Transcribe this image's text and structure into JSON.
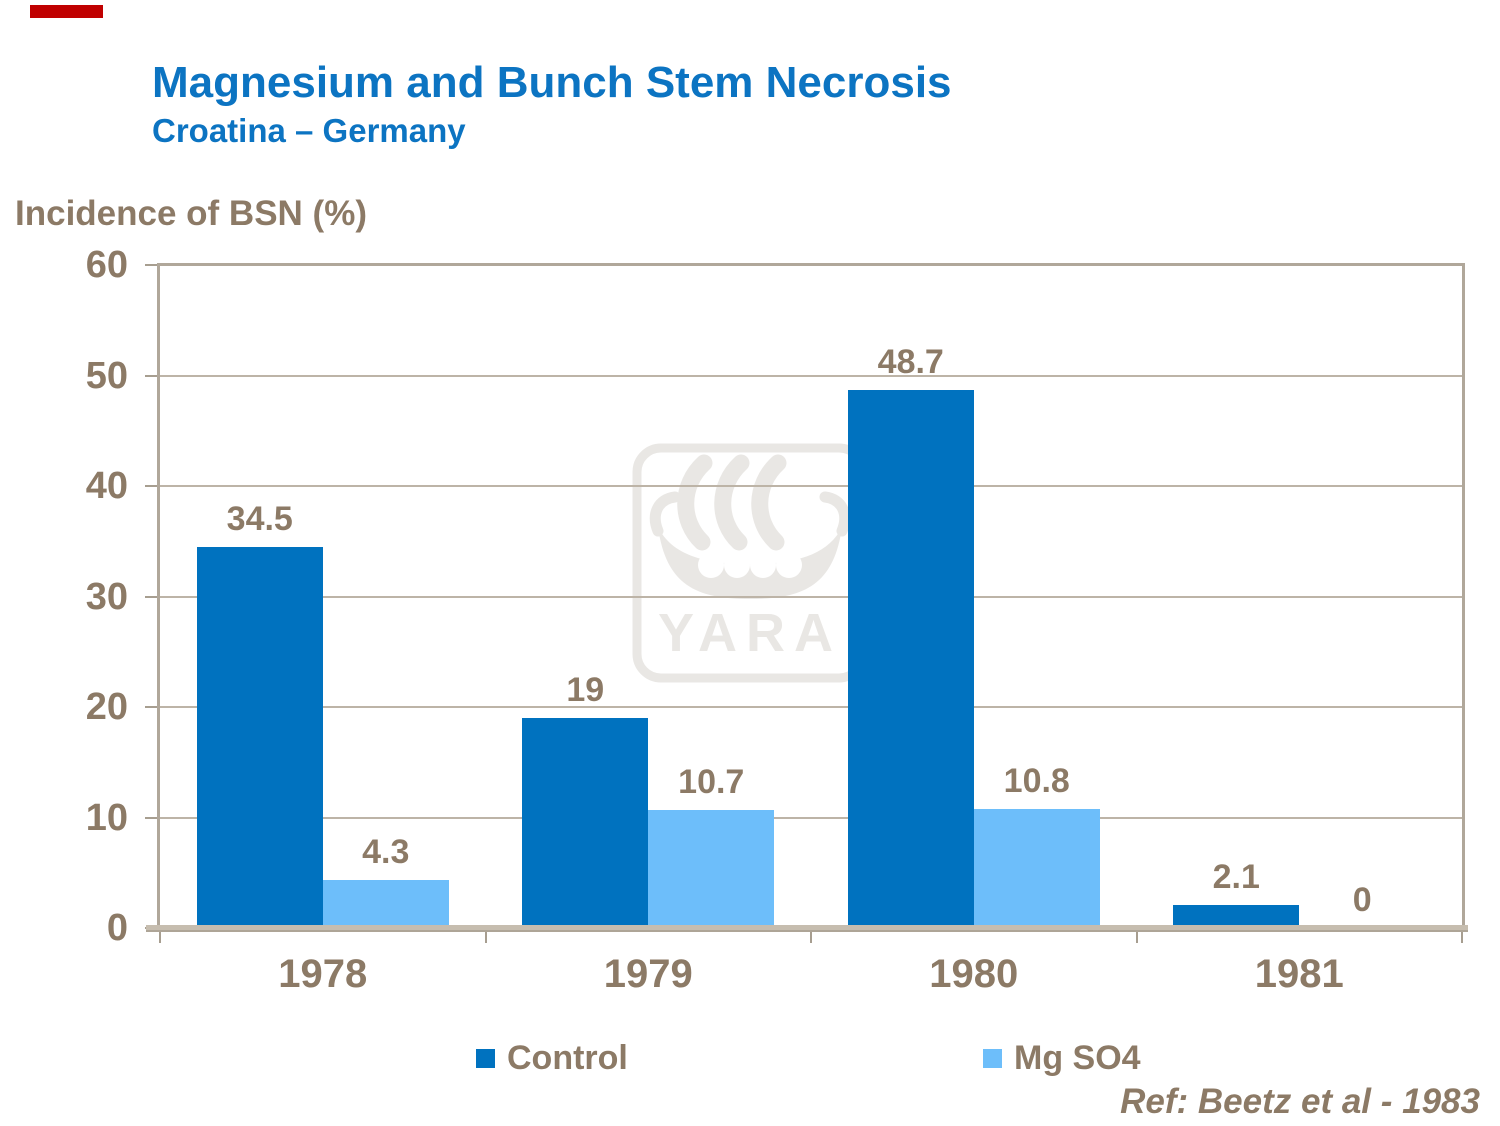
{
  "slide": {
    "title": "Magnesium and Bunch Stem Necrosis",
    "subtitle": "Croatina – Germany",
    "reference": "Ref: Beetz et al - 1983"
  },
  "watermark": {
    "brand_text": "YARA"
  },
  "colors": {
    "title_blue": "#0C74C2",
    "control": "#0072BF",
    "mgso4": "#6DBEFA",
    "text_brown": "#8C7A66",
    "gridline": "#BDB4A7",
    "frame": "#B0A79A",
    "accent_red": "#C00000",
    "watermark_gray": "#E9E7E4"
  },
  "chart_data": {
    "type": "bar",
    "title": "Incidence of BSN (%)",
    "ylabel": "Incidence of BSN (%)",
    "xlabel": "",
    "categories": [
      "1978",
      "1979",
      "1980",
      "1981"
    ],
    "series": [
      {
        "name": "Control",
        "color_key": "control",
        "values": [
          34.5,
          19,
          48.7,
          2.1
        ],
        "labels": [
          "34.5",
          "19",
          "48.7",
          "2.1"
        ]
      },
      {
        "name": "Mg SO4",
        "color_key": "mgso4",
        "values": [
          4.3,
          10.7,
          10.8,
          0
        ],
        "labels": [
          "4.3",
          "10.7",
          "10.8",
          "0"
        ]
      }
    ],
    "ylim": [
      0,
      60
    ],
    "yticks": [
      0,
      10,
      20,
      30,
      40,
      50,
      60
    ],
    "grid": true,
    "legend_position": "bottom"
  },
  "legend": {
    "items": [
      {
        "label": "Control",
        "color_key": "control"
      },
      {
        "label": "Mg SO4",
        "color_key": "mgso4"
      }
    ]
  }
}
